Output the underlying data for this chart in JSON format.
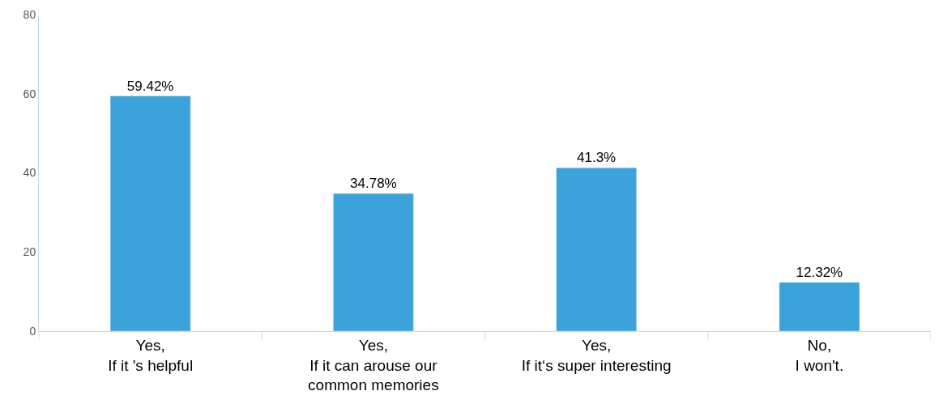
{
  "chart_data": {
    "type": "bar",
    "categories": [
      "Yes,\nIf it 's helpful",
      "Yes,\nIf it can arouse our\ncommon memories",
      "Yes,\nIf it‘s super interesting",
      "No,\nI won't."
    ],
    "values": [
      59.42,
      34.78,
      41.3,
      12.32
    ],
    "value_labels": [
      "59.42%",
      "34.78%",
      "41.3%",
      "12.32%"
    ],
    "color": "#3ba3d9",
    "ylim": [
      0,
      80
    ],
    "yticks": [
      0,
      20,
      40,
      60,
      80
    ]
  }
}
